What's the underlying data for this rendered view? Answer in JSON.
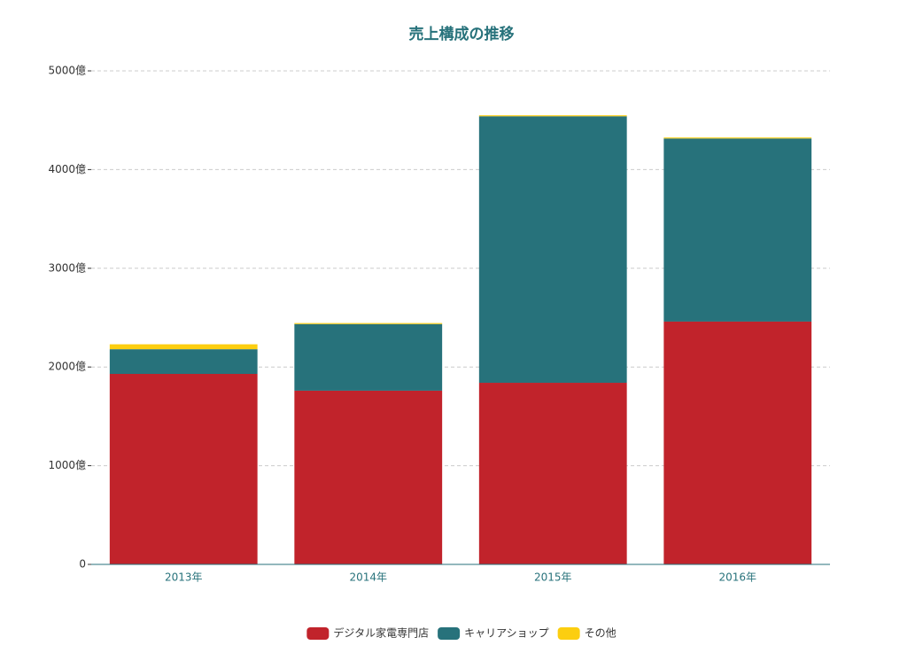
{
  "chart_data": {
    "type": "bar",
    "stacked": true,
    "title": "売上構成の推移",
    "categories": [
      "2013年",
      "2014年",
      "2015年",
      "2016年"
    ],
    "series": [
      {
        "name": "デジタル家電専門店",
        "color": "#c1232b",
        "values": [
          1930,
          1760,
          1840,
          2460
        ]
      },
      {
        "name": "キャリアショップ",
        "color": "#27727b",
        "values": [
          250,
          675,
          2700,
          1855
        ]
      },
      {
        "name": "その他",
        "color": "#fcce10",
        "values": [
          50,
          10,
          10,
          10
        ]
      }
    ],
    "ylim": [
      0,
      5000
    ],
    "yticks": [
      0,
      {
        "value": 1000,
        "label": "1000億"
      },
      {
        "value": 2000,
        "label": "2000億"
      },
      {
        "value": 3000,
        "label": "3000億"
      },
      {
        "value": 4000,
        "label": "4000億"
      },
      {
        "value": 5000,
        "label": "5000億"
      }
    ],
    "grid": true,
    "legend": "bottom"
  }
}
